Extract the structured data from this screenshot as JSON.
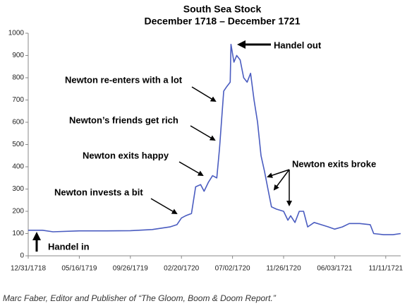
{
  "chart_data": {
    "type": "line",
    "title": "South Sea Stock",
    "subtitle": "December 1718 – December 1721",
    "x": [
      "12/31/1718",
      "02/07/1719",
      "03/07/1719",
      "05/16/1719",
      "07/25/1719",
      "09/26/1719",
      "11/28/1719",
      "01/18/1720",
      "02/07/1720",
      "02/20/1720",
      "03/02/1720",
      "03/17/1720",
      "03/28/1720",
      "04/10/1720",
      "04/19/1720",
      "04/30/1720",
      "05/11/1720",
      "05/22/1720",
      "05/29/1720",
      "06/09/1720",
      "06/17/1720",
      "06/26/1720",
      "06/28/1720",
      "07/06/1720",
      "07/14/1720",
      "07/24/1720",
      "08/03/1720",
      "08/13/1720",
      "08/23/1720",
      "09/02/1720",
      "09/12/1720",
      "09/22/1720",
      "10/02/1720",
      "10/12/1720",
      "10/22/1720",
      "11/05/1720",
      "11/26/1720",
      "12/12/1720",
      "12/22/1720",
      "01/07/1721",
      "01/23/1721",
      "02/08/1721",
      "02/23/1721",
      "03/19/1721",
      "04/14/1721",
      "05/11/1721",
      "06/03/1721",
      "06/27/1721",
      "07/19/1721",
      "08/21/1721",
      "09/23/1721",
      "10/04/1721",
      "11/04/1721",
      "12/04/1721",
      "12/28/1721"
    ],
    "series": [
      {
        "name": "South Sea Stock",
        "color": "#4a5cc0",
        "values": [
          115,
          115,
          108,
          112,
          112,
          113,
          118,
          130,
          140,
          170,
          180,
          190,
          310,
          320,
          290,
          330,
          360,
          350,
          480,
          740,
          760,
          780,
          950,
          870,
          900,
          880,
          800,
          780,
          820,
          700,
          600,
          450,
          380,
          300,
          220,
          210,
          200,
          160,
          180,
          150,
          200,
          200,
          130,
          150,
          140,
          130,
          120,
          130,
          145,
          145,
          140,
          100,
          95,
          95,
          100
        ]
      }
    ],
    "xlim": [
      "12/31/1718",
      "12/28/1721"
    ],
    "xticks": [
      "12/31/1718",
      "05/16/1719",
      "09/26/1719",
      "02/20/1720",
      "07/02/1720",
      "11/26/1720",
      "06/03/1721",
      "11/11/1721"
    ],
    "ylim": [
      0,
      1000
    ],
    "yticks": [
      0,
      100,
      200,
      300,
      400,
      500,
      600,
      700,
      800,
      900,
      1000
    ],
    "annotations": [
      "Handel out",
      "Newton re-enters with a lot",
      "Newton’s friends get rich",
      "Newton exits happy",
      "Newton exits broke",
      "Newton invests a bit",
      "Handel in"
    ],
    "caption": "Marc Faber, Editor and Publisher of “The Gloom, Boom & Doom Report.”"
  }
}
